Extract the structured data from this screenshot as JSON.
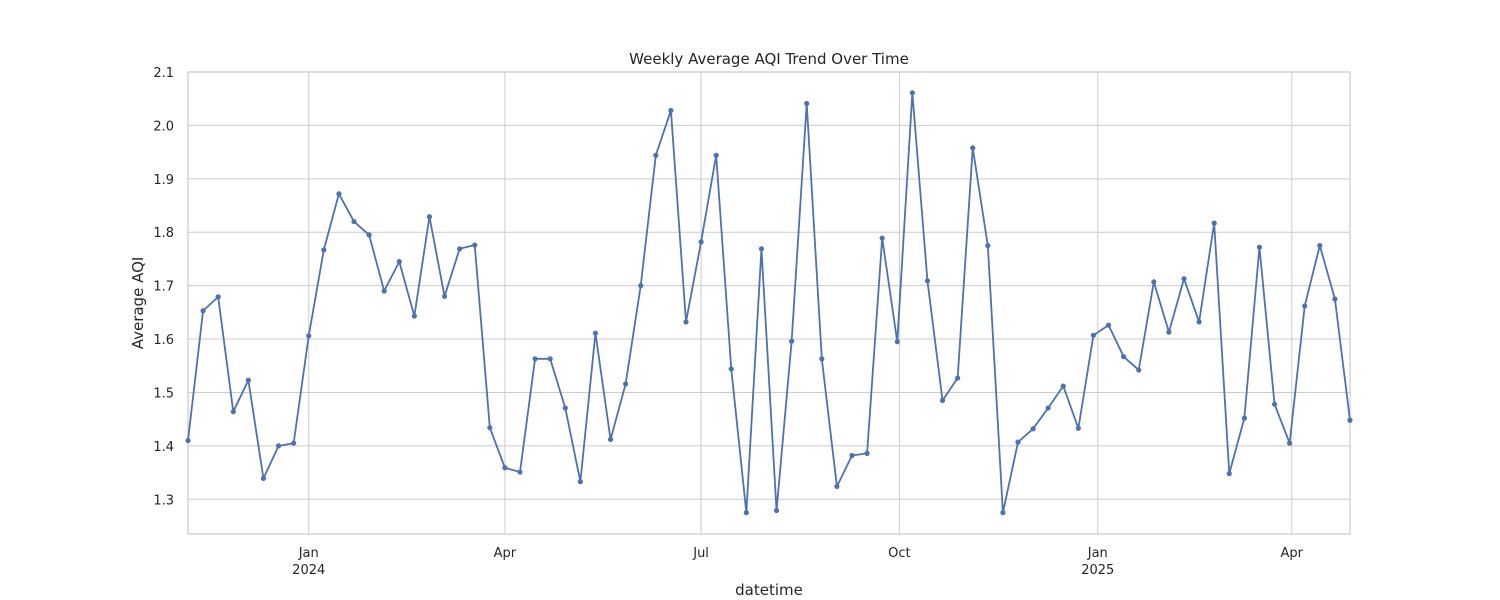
{
  "chart_data": {
    "type": "line",
    "title": "Weekly Average AQI Trend Over Time",
    "xlabel": "datetime",
    "ylabel": "Average AQI",
    "x_range": [
      "2023-11-06",
      "2025-04-28"
    ],
    "ylim": [
      1.235,
      2.1
    ],
    "yticks": [
      "1.3",
      "1.4",
      "1.5",
      "1.6",
      "1.7",
      "1.8",
      "1.9",
      "2.0",
      "2.1"
    ],
    "xticks": [
      {
        "date": "2024-01-01",
        "label": "Jan",
        "sublabel": "2024"
      },
      {
        "date": "2024-04-01",
        "label": "Apr",
        "sublabel": ""
      },
      {
        "date": "2024-07-01",
        "label": "Jul",
        "sublabel": ""
      },
      {
        "date": "2024-10-01",
        "label": "Oct",
        "sublabel": ""
      },
      {
        "date": "2025-01-01",
        "label": "Jan",
        "sublabel": "2025"
      },
      {
        "date": "2025-04-01",
        "label": "Apr",
        "sublabel": ""
      }
    ],
    "grid": true,
    "line_color": "#4c72b0",
    "series": [
      {
        "x": [
          "2023-11-06",
          "2023-11-13",
          "2023-11-20",
          "2023-11-27",
          "2023-12-04",
          "2023-12-11",
          "2023-12-18",
          "2023-12-25",
          "2024-01-01",
          "2024-01-08",
          "2024-01-15",
          "2024-01-22",
          "2024-01-29",
          "2024-02-05",
          "2024-02-12",
          "2024-02-19",
          "2024-02-26",
          "2024-03-04",
          "2024-03-11",
          "2024-03-18",
          "2024-03-25",
          "2024-04-01",
          "2024-04-08",
          "2024-04-15",
          "2024-04-22",
          "2024-04-29",
          "2024-05-06",
          "2024-05-13",
          "2024-05-20",
          "2024-05-27",
          "2024-06-03",
          "2024-06-10",
          "2024-06-17",
          "2024-06-24",
          "2024-07-01",
          "2024-07-08",
          "2024-07-15",
          "2024-07-22",
          "2024-07-29",
          "2024-08-05",
          "2024-08-12",
          "2024-08-19",
          "2024-08-26",
          "2024-09-02",
          "2024-09-09",
          "2024-09-16",
          "2024-09-23",
          "2024-09-30",
          "2024-10-07",
          "2024-10-14",
          "2024-10-21",
          "2024-10-28",
          "2024-11-04",
          "2024-11-11",
          "2024-11-18",
          "2024-11-25",
          "2024-12-02",
          "2024-12-09",
          "2024-12-16",
          "2024-12-23",
          "2024-12-30",
          "2025-01-06",
          "2025-01-13",
          "2025-01-20",
          "2025-01-27",
          "2025-02-03",
          "2025-02-10",
          "2025-02-17",
          "2025-02-24",
          "2025-03-03",
          "2025-03-10",
          "2025-03-17",
          "2025-03-24",
          "2025-03-31",
          "2025-04-07",
          "2025-04-14",
          "2025-04-21",
          "2025-04-28"
        ],
        "y": [
          1.41,
          1.653,
          1.679,
          1.464,
          1.523,
          1.339,
          1.4,
          1.405,
          1.606,
          1.767,
          1.872,
          1.82,
          1.795,
          1.69,
          1.745,
          1.643,
          1.829,
          1.68,
          1.769,
          1.776,
          1.434,
          1.359,
          1.351,
          1.563,
          1.563,
          1.471,
          1.333,
          1.611,
          1.412,
          1.516,
          1.7,
          1.944,
          2.028,
          1.632,
          1.782,
          1.944,
          1.544,
          1.275,
          1.769,
          1.279,
          1.596,
          2.041,
          1.563,
          1.324,
          1.382,
          1.386,
          1.789,
          1.595,
          2.061,
          1.709,
          1.485,
          1.527,
          1.958,
          1.775,
          1.275,
          1.407,
          1.432,
          1.471,
          1.512,
          1.433,
          1.607,
          1.626,
          1.567,
          1.542,
          1.707,
          1.613,
          1.713,
          1.632,
          1.817,
          1.348,
          1.452,
          1.772,
          1.478,
          1.405,
          1.662,
          1.775,
          1.675,
          1.448
        ]
      }
    ]
  }
}
